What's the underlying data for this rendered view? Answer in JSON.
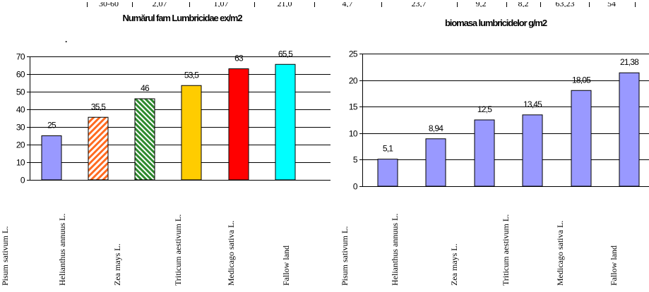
{
  "top_strip": {
    "cells": [
      "30-60",
      "2,07",
      "1,07",
      "21,0",
      "4,7",
      "23,7",
      "9,2",
      "8,2",
      "63,23",
      "54"
    ]
  },
  "chart_data": [
    {
      "type": "bar",
      "title": "Numărul fam Lumbricidae ex/m2",
      "categories": [
        "Pisum sativum L.",
        "Helianthus annuus L.",
        "Zea mays L.",
        "Triticum aestivum L.",
        "Medicago sativa L.",
        "Fallow land"
      ],
      "values": [
        25,
        35.5,
        46,
        53.5,
        63,
        65.5
      ],
      "value_labels": [
        "25",
        "35,5",
        "46",
        "53,5",
        "63",
        "65,5"
      ],
      "yticks": [
        "0",
        "10",
        "20",
        "30",
        "40",
        "50",
        "60",
        "70"
      ],
      "ylim": [
        0,
        70
      ],
      "grid": true,
      "colors": [
        "#9999ff",
        "#ff6a1f",
        "#2e8a2e",
        "#ffcc00",
        "#ff0000",
        "#00ffff"
      ],
      "patterns": [
        "solid",
        "stripes-orange",
        "stripes-green",
        "solid",
        "solid",
        "solid"
      ]
    },
    {
      "type": "bar",
      "title": "biomasa lumbricidelor g/m2",
      "categories": [
        "Pisum sativum L.",
        "Helianthus annuus L.",
        "Zea mays L.",
        "Triticum aestivum L.",
        "Medicago sativa L.",
        "Fallow land"
      ],
      "values": [
        5.1,
        8.94,
        12.5,
        13.45,
        18.05,
        21.38
      ],
      "value_labels": [
        "5,1",
        "8,94",
        "12,5",
        "13,45",
        "18,05",
        "21,38"
      ],
      "yticks": [
        "0",
        "5",
        "10",
        "15",
        "20",
        "25"
      ],
      "ylim": [
        0,
        25
      ],
      "grid": true,
      "colors": [
        "#9999ff"
      ]
    }
  ]
}
